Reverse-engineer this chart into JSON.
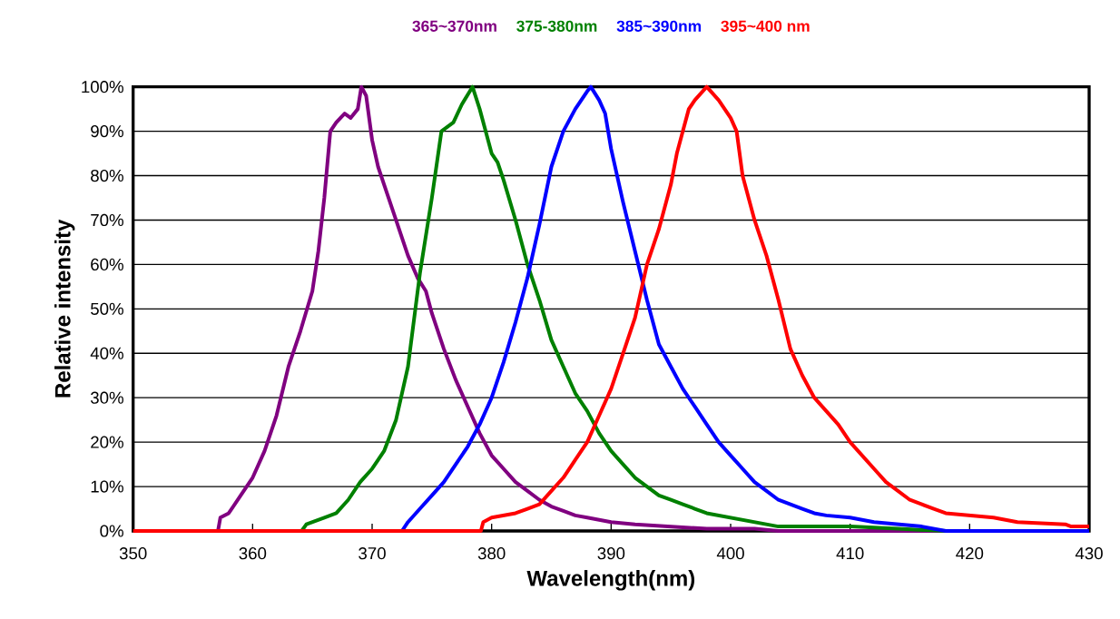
{
  "chart_data": {
    "type": "line",
    "xlabel": "Wavelength(nm)",
    "ylabel": "Relative intensity",
    "xlim": [
      350,
      430
    ],
    "xticks": [
      350,
      360,
      370,
      380,
      390,
      400,
      410,
      420,
      430
    ],
    "ylim": [
      0,
      100
    ],
    "yticks": [
      {
        "value": 0,
        "label": "0%"
      },
      {
        "value": 10,
        "label": "10%"
      },
      {
        "value": 20,
        "label": "20%"
      },
      {
        "value": 30,
        "label": "30%"
      },
      {
        "value": 40,
        "label": "40%"
      },
      {
        "value": 50,
        "label": "50%"
      },
      {
        "value": 60,
        "label": "60%"
      },
      {
        "value": 70,
        "label": "70%"
      },
      {
        "value": 80,
        "label": "80%"
      },
      {
        "value": 90,
        "label": "90%"
      },
      {
        "value": 100,
        "label": "100%"
      }
    ],
    "grid": "y",
    "legend": "top",
    "marker": "none",
    "line_style": "solid",
    "series": [
      {
        "name": "365~370nm",
        "color": "#800080",
        "x": [
          357.1,
          357.3,
          358,
          359,
          360,
          361,
          362,
          363,
          364,
          365,
          365.5,
          366,
          366.5,
          367,
          367.7,
          368.2,
          368.8,
          369.1,
          369.5,
          370,
          370.5,
          371,
          372,
          373,
          373.8,
          374.5,
          375,
          376,
          377,
          378,
          379,
          380,
          381,
          382,
          383,
          384,
          385,
          386,
          387,
          388,
          390,
          392,
          395,
          398,
          402,
          404,
          430
        ],
        "values": [
          0,
          3,
          4,
          8,
          12,
          18,
          26,
          37,
          45,
          54,
          63,
          75,
          90,
          92,
          94,
          93,
          95,
          100,
          98,
          88,
          82,
          78,
          70,
          62,
          57,
          54,
          49,
          41,
          34,
          28,
          22,
          17,
          14,
          11,
          9,
          7,
          5.5,
          4.5,
          3.5,
          3,
          2,
          1.5,
          1,
          0.5,
          0.5,
          0,
          0
        ]
      },
      {
        "name": "375-380nm",
        "color": "#008000",
        "x": [
          364.1,
          364.5,
          366,
          367,
          368,
          369,
          370,
          371,
          372,
          373,
          374,
          375,
          375.8,
          376.8,
          377.5,
          378.4,
          379,
          379.5,
          380,
          380.5,
          381,
          382,
          383,
          384,
          385,
          386,
          387,
          388,
          389,
          390,
          391,
          392,
          393,
          394,
          395,
          396,
          397,
          398,
          400,
          402,
          404,
          410,
          414,
          418,
          430
        ],
        "values": [
          0,
          1.5,
          3,
          4,
          7,
          11,
          14,
          18,
          25,
          37,
          58,
          75,
          90,
          92,
          96,
          100,
          95,
          90,
          85,
          83,
          79,
          70,
          60,
          52,
          43,
          37,
          31,
          27,
          22,
          18,
          15,
          12,
          10,
          8,
          7,
          6,
          5,
          4,
          3,
          2,
          1,
          1,
          0.5,
          0,
          0
        ]
      },
      {
        "name": "385~390nm",
        "color": "#0000ff",
        "x": [
          372.5,
          373,
          374,
          375,
          376,
          377,
          378,
          379,
          380,
          381,
          382,
          383,
          384,
          385,
          386,
          387,
          388,
          388.3,
          389,
          389.5,
          390,
          391,
          392,
          393,
          394,
          395,
          396,
          397,
          398,
          399,
          400,
          401,
          402,
          403,
          404,
          405,
          406,
          407,
          408,
          410,
          412,
          414,
          416,
          418,
          430
        ],
        "values": [
          0,
          2,
          5,
          8,
          11,
          15,
          19,
          24,
          30,
          38,
          47,
          57,
          69,
          82,
          90,
          95,
          99,
          100,
          97,
          94,
          86,
          74,
          63,
          52,
          42,
          37,
          32,
          28,
          24,
          20,
          17,
          14,
          11,
          9,
          7,
          6,
          5,
          4,
          3.5,
          3,
          2,
          1.5,
          1,
          0,
          0
        ]
      },
      {
        "name": "395~400 nm",
        "color": "#ff0000",
        "x": [
          350,
          379.1,
          379.3,
          380,
          382,
          383,
          384,
          385,
          386,
          387,
          388,
          389,
          390,
          391,
          392,
          393,
          394,
          395,
          395.5,
          396,
          396.5,
          397,
          398,
          399,
          400,
          400.5,
          401,
          402,
          403,
          404,
          405,
          406,
          407,
          408,
          409,
          410,
          411,
          412,
          413,
          414,
          415,
          416,
          417,
          418,
          420,
          422,
          424,
          428,
          428.5,
          430
        ],
        "values": [
          0,
          0,
          2,
          3,
          4,
          5,
          6,
          9,
          12,
          16,
          20,
          26,
          32,
          40,
          48,
          60,
          68,
          78,
          85,
          90,
          95,
          97,
          100,
          97,
          93,
          90,
          80,
          70,
          62,
          52,
          41,
          35,
          30,
          27,
          24,
          20,
          17,
          14,
          11,
          9,
          7,
          6,
          5,
          4,
          3.5,
          3,
          2,
          1.5,
          1,
          1
        ]
      }
    ]
  }
}
